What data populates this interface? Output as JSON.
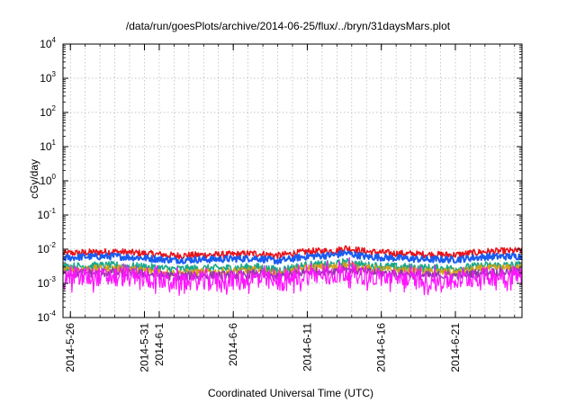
{
  "chart_data": {
    "type": "line",
    "title": "/data/run/goesPlots/archive/2014-06-25/flux/../bryn/31daysMars.plot",
    "xlabel": "Coordinated Universal Time (UTC)",
    "ylabel": "cGy/day",
    "yscale": "log",
    "ylim": [
      0.0001,
      10000
    ],
    "xlim": [
      "2014-05-25T12:00",
      "2014-06-25T12:00"
    ],
    "grid": true,
    "legend": "none",
    "x_ticks": [
      {
        "date": "2014-05-26",
        "label": "2014-5-26"
      },
      {
        "date": "2014-05-31",
        "label": "2014-5-31"
      },
      {
        "date": "2014-06-01",
        "label": "2014-6-1"
      },
      {
        "date": "2014-06-06",
        "label": "2014-6-6"
      },
      {
        "date": "2014-06-11",
        "label": "2014-6-11"
      },
      {
        "date": "2014-06-16",
        "label": "2014-6-16"
      },
      {
        "date": "2014-06-21",
        "label": "2014-6-21"
      }
    ],
    "y_ticks": [
      {
        "value": 0.0001,
        "base": "10",
        "exp": "-4"
      },
      {
        "value": 0.001,
        "base": "10",
        "exp": "-3"
      },
      {
        "value": 0.01,
        "base": "10",
        "exp": "-2"
      },
      {
        "value": 0.1,
        "base": "10",
        "exp": "-1"
      },
      {
        "value": 1,
        "base": "10",
        "exp": "0"
      },
      {
        "value": 10,
        "base": "10",
        "exp": "1"
      },
      {
        "value": 100,
        "base": "10",
        "exp": "2"
      },
      {
        "value": 1000,
        "base": "10",
        "exp": "3"
      },
      {
        "value": 10000,
        "base": "10",
        "exp": "4"
      }
    ],
    "series": [
      {
        "color": "#e8141b",
        "width": 1.6,
        "noise": 0.1,
        "x": [
          "2014-05-25T12:00",
          "2014-05-27T00:00",
          "2014-05-29T00:00",
          "2014-05-31T00:00",
          "2014-06-02T00:00",
          "2014-06-04T00:00",
          "2014-06-06T00:00",
          "2014-06-07T12:00",
          "2014-06-09T00:00",
          "2014-06-11T00:00",
          "2014-06-13T00:00",
          "2014-06-13T12:00",
          "2014-06-15T00:00",
          "2014-06-17T00:00",
          "2014-06-19T00:00",
          "2014-06-21T00:00",
          "2014-06-23T00:00",
          "2014-06-25T12:00"
        ],
        "y": [
          0.0075,
          0.008,
          0.0085,
          0.0075,
          0.0065,
          0.0068,
          0.007,
          0.0075,
          0.0065,
          0.0085,
          0.009,
          0.011,
          0.0085,
          0.0075,
          0.007,
          0.0068,
          0.0085,
          0.009
        ]
      },
      {
        "color": "#1a5cf0",
        "width": 2.0,
        "noise": 0.1,
        "x": [
          "2014-05-25T12:00",
          "2014-05-27T00:00",
          "2014-05-29T00:00",
          "2014-05-31T00:00",
          "2014-06-02T00:00",
          "2014-06-04T00:00",
          "2014-06-06T00:00",
          "2014-06-07T12:00",
          "2014-06-09T00:00",
          "2014-06-11T00:00",
          "2014-06-13T00:00",
          "2014-06-13T12:00",
          "2014-06-15T00:00",
          "2014-06-17T00:00",
          "2014-06-19T00:00",
          "2014-06-21T00:00",
          "2014-06-23T00:00",
          "2014-06-25T12:00"
        ],
        "y": [
          0.0055,
          0.006,
          0.0062,
          0.0055,
          0.0048,
          0.005,
          0.0052,
          0.0055,
          0.0045,
          0.0062,
          0.0068,
          0.0078,
          0.006,
          0.0055,
          0.005,
          0.005,
          0.006,
          0.0062
        ]
      },
      {
        "color": "#1aa88a",
        "width": 1.6,
        "noise": 0.12,
        "x": [
          "2014-05-25T12:00",
          "2014-05-27T00:00",
          "2014-05-29T00:00",
          "2014-05-31T00:00",
          "2014-06-02T00:00",
          "2014-06-04T00:00",
          "2014-06-06T00:00",
          "2014-06-07T12:00",
          "2014-06-09T00:00",
          "2014-06-11T00:00",
          "2014-06-13T00:00",
          "2014-06-13T12:00",
          "2014-06-15T00:00",
          "2014-06-17T00:00",
          "2014-06-19T00:00",
          "2014-06-21T00:00",
          "2014-06-23T00:00",
          "2014-06-25T12:00"
        ],
        "y": [
          0.003,
          0.0032,
          0.0033,
          0.003,
          0.0026,
          0.0027,
          0.0028,
          0.003,
          0.0024,
          0.0034,
          0.0036,
          0.0042,
          0.0033,
          0.003,
          0.0028,
          0.0027,
          0.0033,
          0.0034
        ]
      },
      {
        "color": "#d4a017",
        "width": 1.4,
        "noise": 0.12,
        "x": [
          "2014-05-25T12:00",
          "2014-05-27T00:00",
          "2014-05-29T00:00",
          "2014-05-31T00:00",
          "2014-06-02T00:00",
          "2014-06-04T00:00",
          "2014-06-06T00:00",
          "2014-06-07T12:00",
          "2014-06-09T00:00",
          "2014-06-11T00:00",
          "2014-06-13T00:00",
          "2014-06-13T12:00",
          "2014-06-15T00:00",
          "2014-06-17T00:00",
          "2014-06-19T00:00",
          "2014-06-21T00:00",
          "2014-06-23T00:00",
          "2014-06-25T12:00"
        ],
        "y": [
          0.0024,
          0.0026,
          0.0027,
          0.0024,
          0.002,
          0.0021,
          0.0022,
          0.0024,
          0.0019,
          0.0028,
          0.003,
          0.0035,
          0.0027,
          0.0024,
          0.0022,
          0.0021,
          0.0027,
          0.0028
        ]
      },
      {
        "color": "#8e3aa8",
        "width": 1.4,
        "noise": 0.13,
        "x": [
          "2014-05-25T12:00",
          "2014-05-27T00:00",
          "2014-05-29T00:00",
          "2014-05-31T00:00",
          "2014-06-02T00:00",
          "2014-06-04T00:00",
          "2014-06-06T00:00",
          "2014-06-07T12:00",
          "2014-06-09T00:00",
          "2014-06-11T00:00",
          "2014-06-13T00:00",
          "2014-06-13T12:00",
          "2014-06-15T00:00",
          "2014-06-17T00:00",
          "2014-06-19T00:00",
          "2014-06-21T00:00",
          "2014-06-23T00:00",
          "2014-06-25T12:00"
        ],
        "y": [
          0.0019,
          0.002,
          0.0021,
          0.0019,
          0.0016,
          0.0017,
          0.0017,
          0.0019,
          0.0015,
          0.0022,
          0.0024,
          0.0028,
          0.0021,
          0.0019,
          0.0017,
          0.0017,
          0.0021,
          0.0022
        ]
      },
      {
        "color": "#ff14ff",
        "width": 1.2,
        "noise": 0.28,
        "x": [
          "2014-05-25T12:00",
          "2014-05-27T00:00",
          "2014-05-29T00:00",
          "2014-05-31T00:00",
          "2014-06-02T00:00",
          "2014-06-04T00:00",
          "2014-06-06T00:00",
          "2014-06-07T12:00",
          "2014-06-09T00:00",
          "2014-06-11T00:00",
          "2014-06-13T00:00",
          "2014-06-13T12:00",
          "2014-06-15T00:00",
          "2014-06-17T00:00",
          "2014-06-19T00:00",
          "2014-06-21T00:00",
          "2014-06-23T00:00",
          "2014-06-25T12:00"
        ],
        "y": [
          0.0014,
          0.0015,
          0.0016,
          0.0014,
          0.0011,
          0.0012,
          0.0012,
          0.0014,
          0.001,
          0.0017,
          0.0018,
          0.0022,
          0.0016,
          0.0014,
          0.0012,
          0.0012,
          0.0016,
          0.0017
        ]
      }
    ]
  }
}
